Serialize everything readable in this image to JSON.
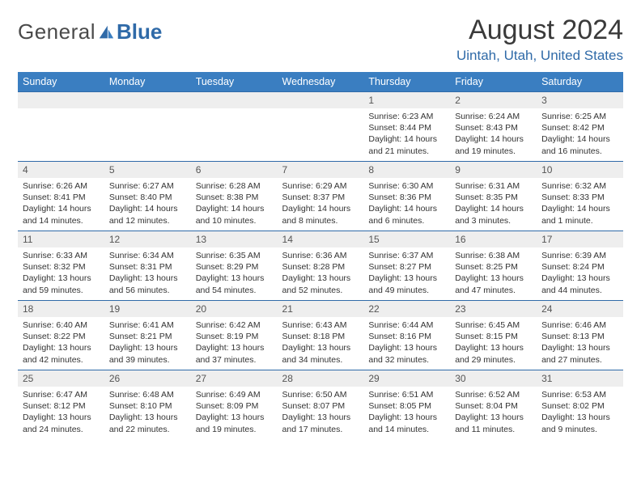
{
  "brand": {
    "part1": "General",
    "part2": "Blue"
  },
  "title": "August 2024",
  "location": "Uintah, Utah, United States",
  "colors": {
    "header_bg": "#3a7ec1",
    "row_divider": "#2f6aa8",
    "daynum_bg": "#eeeeee",
    "brand_blue": "#2f6aa8"
  },
  "weekdays": [
    "Sunday",
    "Monday",
    "Tuesday",
    "Wednesday",
    "Thursday",
    "Friday",
    "Saturday"
  ],
  "weeks": [
    [
      null,
      null,
      null,
      null,
      {
        "day": "1",
        "sunrise": "Sunrise: 6:23 AM",
        "sunset": "Sunset: 8:44 PM",
        "daylight": "Daylight: 14 hours and 21 minutes."
      },
      {
        "day": "2",
        "sunrise": "Sunrise: 6:24 AM",
        "sunset": "Sunset: 8:43 PM",
        "daylight": "Daylight: 14 hours and 19 minutes."
      },
      {
        "day": "3",
        "sunrise": "Sunrise: 6:25 AM",
        "sunset": "Sunset: 8:42 PM",
        "daylight": "Daylight: 14 hours and 16 minutes."
      }
    ],
    [
      {
        "day": "4",
        "sunrise": "Sunrise: 6:26 AM",
        "sunset": "Sunset: 8:41 PM",
        "daylight": "Daylight: 14 hours and 14 minutes."
      },
      {
        "day": "5",
        "sunrise": "Sunrise: 6:27 AM",
        "sunset": "Sunset: 8:40 PM",
        "daylight": "Daylight: 14 hours and 12 minutes."
      },
      {
        "day": "6",
        "sunrise": "Sunrise: 6:28 AM",
        "sunset": "Sunset: 8:38 PM",
        "daylight": "Daylight: 14 hours and 10 minutes."
      },
      {
        "day": "7",
        "sunrise": "Sunrise: 6:29 AM",
        "sunset": "Sunset: 8:37 PM",
        "daylight": "Daylight: 14 hours and 8 minutes."
      },
      {
        "day": "8",
        "sunrise": "Sunrise: 6:30 AM",
        "sunset": "Sunset: 8:36 PM",
        "daylight": "Daylight: 14 hours and 6 minutes."
      },
      {
        "day": "9",
        "sunrise": "Sunrise: 6:31 AM",
        "sunset": "Sunset: 8:35 PM",
        "daylight": "Daylight: 14 hours and 3 minutes."
      },
      {
        "day": "10",
        "sunrise": "Sunrise: 6:32 AM",
        "sunset": "Sunset: 8:33 PM",
        "daylight": "Daylight: 14 hours and 1 minute."
      }
    ],
    [
      {
        "day": "11",
        "sunrise": "Sunrise: 6:33 AM",
        "sunset": "Sunset: 8:32 PM",
        "daylight": "Daylight: 13 hours and 59 minutes."
      },
      {
        "day": "12",
        "sunrise": "Sunrise: 6:34 AM",
        "sunset": "Sunset: 8:31 PM",
        "daylight": "Daylight: 13 hours and 56 minutes."
      },
      {
        "day": "13",
        "sunrise": "Sunrise: 6:35 AM",
        "sunset": "Sunset: 8:29 PM",
        "daylight": "Daylight: 13 hours and 54 minutes."
      },
      {
        "day": "14",
        "sunrise": "Sunrise: 6:36 AM",
        "sunset": "Sunset: 8:28 PM",
        "daylight": "Daylight: 13 hours and 52 minutes."
      },
      {
        "day": "15",
        "sunrise": "Sunrise: 6:37 AM",
        "sunset": "Sunset: 8:27 PM",
        "daylight": "Daylight: 13 hours and 49 minutes."
      },
      {
        "day": "16",
        "sunrise": "Sunrise: 6:38 AM",
        "sunset": "Sunset: 8:25 PM",
        "daylight": "Daylight: 13 hours and 47 minutes."
      },
      {
        "day": "17",
        "sunrise": "Sunrise: 6:39 AM",
        "sunset": "Sunset: 8:24 PM",
        "daylight": "Daylight: 13 hours and 44 minutes."
      }
    ],
    [
      {
        "day": "18",
        "sunrise": "Sunrise: 6:40 AM",
        "sunset": "Sunset: 8:22 PM",
        "daylight": "Daylight: 13 hours and 42 minutes."
      },
      {
        "day": "19",
        "sunrise": "Sunrise: 6:41 AM",
        "sunset": "Sunset: 8:21 PM",
        "daylight": "Daylight: 13 hours and 39 minutes."
      },
      {
        "day": "20",
        "sunrise": "Sunrise: 6:42 AM",
        "sunset": "Sunset: 8:19 PM",
        "daylight": "Daylight: 13 hours and 37 minutes."
      },
      {
        "day": "21",
        "sunrise": "Sunrise: 6:43 AM",
        "sunset": "Sunset: 8:18 PM",
        "daylight": "Daylight: 13 hours and 34 minutes."
      },
      {
        "day": "22",
        "sunrise": "Sunrise: 6:44 AM",
        "sunset": "Sunset: 8:16 PM",
        "daylight": "Daylight: 13 hours and 32 minutes."
      },
      {
        "day": "23",
        "sunrise": "Sunrise: 6:45 AM",
        "sunset": "Sunset: 8:15 PM",
        "daylight": "Daylight: 13 hours and 29 minutes."
      },
      {
        "day": "24",
        "sunrise": "Sunrise: 6:46 AM",
        "sunset": "Sunset: 8:13 PM",
        "daylight": "Daylight: 13 hours and 27 minutes."
      }
    ],
    [
      {
        "day": "25",
        "sunrise": "Sunrise: 6:47 AM",
        "sunset": "Sunset: 8:12 PM",
        "daylight": "Daylight: 13 hours and 24 minutes."
      },
      {
        "day": "26",
        "sunrise": "Sunrise: 6:48 AM",
        "sunset": "Sunset: 8:10 PM",
        "daylight": "Daylight: 13 hours and 22 minutes."
      },
      {
        "day": "27",
        "sunrise": "Sunrise: 6:49 AM",
        "sunset": "Sunset: 8:09 PM",
        "daylight": "Daylight: 13 hours and 19 minutes."
      },
      {
        "day": "28",
        "sunrise": "Sunrise: 6:50 AM",
        "sunset": "Sunset: 8:07 PM",
        "daylight": "Daylight: 13 hours and 17 minutes."
      },
      {
        "day": "29",
        "sunrise": "Sunrise: 6:51 AM",
        "sunset": "Sunset: 8:05 PM",
        "daylight": "Daylight: 13 hours and 14 minutes."
      },
      {
        "day": "30",
        "sunrise": "Sunrise: 6:52 AM",
        "sunset": "Sunset: 8:04 PM",
        "daylight": "Daylight: 13 hours and 11 minutes."
      },
      {
        "day": "31",
        "sunrise": "Sunrise: 6:53 AM",
        "sunset": "Sunset: 8:02 PM",
        "daylight": "Daylight: 13 hours and 9 minutes."
      }
    ]
  ]
}
